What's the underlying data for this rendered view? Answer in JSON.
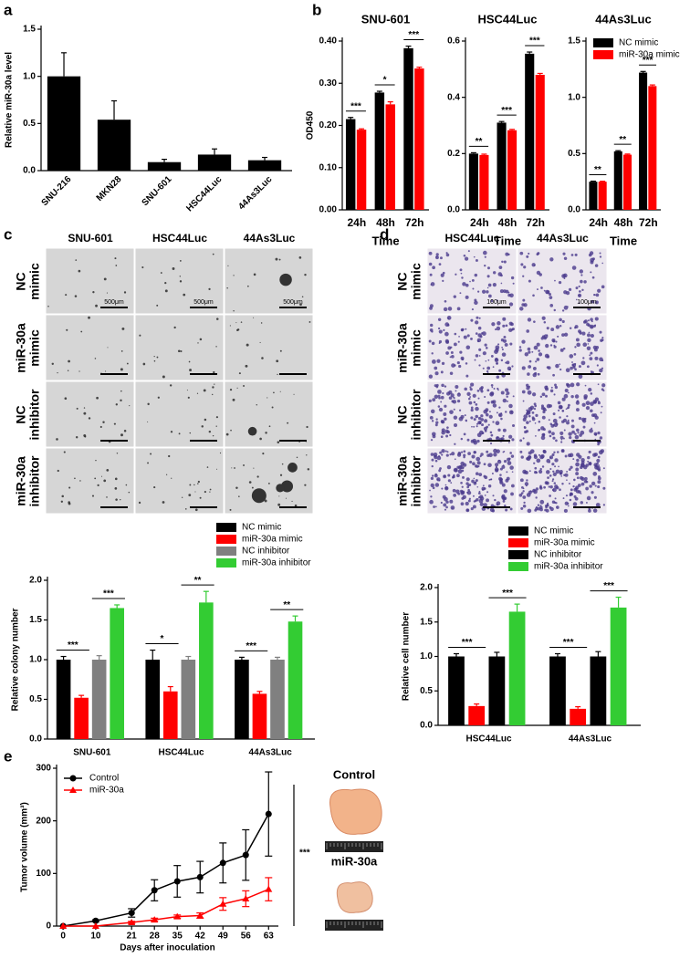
{
  "chart_data": [
    {
      "type": "bar",
      "panel": "a",
      "ylabel": "Relative miR-30a level",
      "categories": [
        "SNU-216",
        "MKN28",
        "SNU-601",
        "HSC44Luc",
        "44As3Luc"
      ],
      "values": [
        1.0,
        0.54,
        0.09,
        0.17,
        0.11
      ],
      "errors": [
        0.25,
        0.2,
        0.03,
        0.06,
        0.03
      ],
      "color": "#000000",
      "ylim": [
        0,
        1.5
      ],
      "yticks": [
        {
          "value": 0,
          "label": "0.0"
        },
        0.5,
        {
          "value": 1,
          "label": "1.0"
        },
        1.5
      ]
    },
    {
      "type": "bar",
      "panel": "b",
      "title": "SNU-601",
      "ylabel": "OD450",
      "xlabel": "Time",
      "categories": [
        "24h",
        "48h",
        "72h"
      ],
      "series": [
        {
          "name": "NC mimic",
          "color": "#000000",
          "values": [
            0.215,
            0.278,
            0.383
          ],
          "errors": [
            0.004,
            0.003,
            0.005
          ]
        },
        {
          "name": "miR-30a mimic",
          "color": "#ff0000",
          "values": [
            0.19,
            0.25,
            0.335
          ],
          "errors": [
            0.002,
            0.006,
            0.003
          ]
        }
      ],
      "significance": [
        "***",
        "*",
        "***"
      ],
      "ylim": [
        0,
        0.4
      ],
      "yticks": [
        {
          "value": 0,
          "label": "0.00"
        },
        {
          "value": 0.1,
          "label": "0.10"
        },
        {
          "value": 0.2,
          "label": "0.20"
        },
        {
          "value": 0.3,
          "label": "0.30"
        },
        {
          "value": 0.4,
          "label": "0.40"
        }
      ]
    },
    {
      "type": "bar",
      "title": "HSC44Luc",
      "xlabel": "Time",
      "categories": [
        "24h",
        "48h",
        "72h"
      ],
      "series": [
        {
          "color": "#000000",
          "values": [
            0.2,
            0.31,
            0.555
          ],
          "errors": [
            0.003,
            0.004,
            0.006
          ]
        },
        {
          "color": "#ff0000",
          "values": [
            0.195,
            0.283,
            0.48
          ],
          "errors": [
            0.003,
            0.003,
            0.005
          ]
        }
      ],
      "significance": [
        "**",
        "***",
        "***"
      ],
      "ylim": [
        0,
        0.6
      ],
      "yticks": [
        {
          "value": 0,
          "label": "0.0"
        },
        0.2,
        0.4,
        0.6
      ]
    },
    {
      "type": "bar",
      "title": "44As3Luc",
      "xlabel": "Time",
      "categories": [
        "24h",
        "48h",
        "72h"
      ],
      "series": [
        {
          "name": "NC mimic",
          "color": "#000000",
          "values": [
            0.25,
            0.52,
            1.22
          ],
          "errors": [
            0.005,
            0.006,
            0.01
          ]
        },
        {
          "name": "miR-30a mimic",
          "color": "#ff0000",
          "values": [
            0.25,
            0.49,
            1.1
          ],
          "errors": [
            0.004,
            0.006,
            0.01
          ]
        }
      ],
      "significance": [
        "**",
        "**",
        "***"
      ],
      "ylim": [
        0,
        1.5
      ],
      "yticks": [
        {
          "value": 0,
          "label": "0.0"
        },
        0.5,
        {
          "value": 1,
          "label": "1.0"
        },
        1.5
      ]
    },
    {
      "type": "bar",
      "ylabel": "Relative colony number",
      "categories": [
        "SNU-601",
        "HSC44Luc",
        "44As3Luc"
      ],
      "series": [
        {
          "name": "NC mimic",
          "color": "#000000",
          "values": [
            1.0,
            1.0,
            1.0
          ],
          "errors": [
            0.04,
            0.12,
            0.03
          ]
        },
        {
          "name": "miR-30a mimic",
          "color": "#ff0000",
          "values": [
            0.52,
            0.6,
            0.57
          ],
          "errors": [
            0.03,
            0.06,
            0.03
          ]
        },
        {
          "name": "NC inhibitor",
          "color": "#808080",
          "values": [
            1.0,
            1.0,
            1.0
          ],
          "errors": [
            0.05,
            0.04,
            0.03
          ]
        },
        {
          "name": "miR-30a inhibitor",
          "color": "#33cc33",
          "values": [
            1.65,
            1.72,
            1.48
          ],
          "errors": [
            0.04,
            0.14,
            0.07
          ]
        }
      ],
      "significance": [
        [
          "***",
          "***"
        ],
        [
          "*",
          "**"
        ],
        [
          "***",
          "**"
        ]
      ],
      "ylim": [
        0,
        2
      ],
      "yticks": [
        {
          "value": 0,
          "label": "0.0"
        },
        0.5,
        {
          "value": 1,
          "label": "1.0"
        },
        1.5,
        {
          "value": 2,
          "label": "2.0"
        }
      ]
    },
    {
      "type": "bar",
      "ylabel": "Relative cell number",
      "categories": [
        "HSC44Luc",
        "44As3Luc"
      ],
      "series": [
        {
          "name": "NC mimic",
          "color": "#000000",
          "values": [
            1.0,
            1.0
          ],
          "errors": [
            0.04,
            0.04
          ]
        },
        {
          "name": "miR-30a mimic",
          "color": "#ff0000",
          "values": [
            0.28,
            0.24
          ],
          "errors": [
            0.03,
            0.03
          ]
        },
        {
          "name": "NC inhibitor",
          "color": "#000000",
          "values": [
            1.0,
            1.0
          ],
          "errors": [
            0.06,
            0.07
          ]
        },
        {
          "name": "miR-30a inhibitor",
          "color": "#33cc33",
          "values": [
            1.65,
            1.71
          ],
          "errors": [
            0.11,
            0.15
          ]
        }
      ],
      "significance": [
        [
          "***",
          "***"
        ],
        [
          "***",
          "***"
        ]
      ],
      "ylim": [
        0,
        2
      ],
      "yticks": [
        {
          "value": 0,
          "label": "0.0"
        },
        0.5,
        {
          "value": 1,
          "label": "1.0"
        },
        1.5,
        {
          "value": 2,
          "label": "2.0"
        }
      ]
    },
    {
      "type": "line",
      "panel": "e",
      "xlabel": "Days after inoculation",
      "ylabel": "Tumor volume (mm³)",
      "x": [
        0,
        10,
        21,
        28,
        35,
        42,
        49,
        56,
        63
      ],
      "series": [
        {
          "name": "Control",
          "color": "#000000",
          "marker": "circle",
          "values": [
            0,
            10,
            25,
            68,
            85,
            93,
            120,
            135,
            213
          ],
          "errors": [
            0,
            2,
            8,
            20,
            30,
            30,
            38,
            48,
            80
          ]
        },
        {
          "name": "miR-30a",
          "color": "#ff0000",
          "marker": "triangle",
          "values": [
            0,
            0,
            7,
            12,
            18,
            20,
            42,
            52,
            70
          ],
          "errors": [
            0,
            0,
            2,
            3,
            3,
            5,
            12,
            15,
            22
          ]
        }
      ],
      "annotation": "***",
      "photo_labels": [
        "Control",
        "miR-30a"
      ],
      "xlim": [
        -2,
        66
      ],
      "xticks": [
        0,
        10,
        21,
        28,
        35,
        42,
        49,
        56,
        63
      ],
      "ylim": [
        0,
        300
      ],
      "yticks": [
        0,
        100,
        200,
        300
      ]
    }
  ],
  "image_panels": [
    {
      "panel": "c",
      "columns": [
        "SNU-601",
        "HSC44Luc",
        "44As3Luc"
      ],
      "rows": [
        [
          "NC",
          "mimic"
        ],
        [
          "miR-30a",
          "mimic"
        ],
        [
          "NC",
          "inhibitor"
        ],
        [
          "miR-30a",
          "inhibitor"
        ]
      ],
      "scale_label": "500μm"
    },
    {
      "panel": "d",
      "columns": [
        "HSC44Luc",
        "44As3Luc"
      ],
      "rows": [
        [
          "NC",
          "mimic"
        ],
        [
          "miR-30a",
          "mimic"
        ],
        [
          "NC",
          "inhibitor"
        ],
        [
          "miR-30a",
          "inhibitor"
        ]
      ],
      "scale_label": "100μm"
    }
  ]
}
